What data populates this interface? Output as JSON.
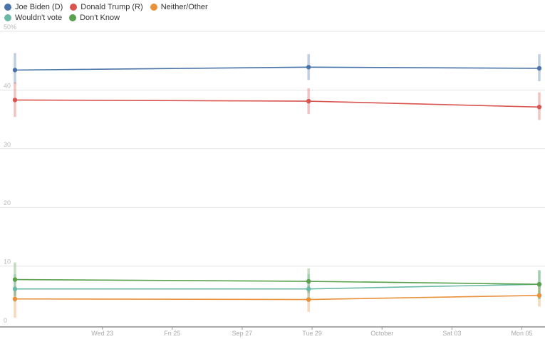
{
  "chart_data": {
    "type": "line",
    "y_unit": "%",
    "ylim": [
      0,
      50
    ],
    "y_ticks": [
      {
        "value": 0,
        "label": "0"
      },
      {
        "value": 10,
        "label": "10"
      },
      {
        "value": 20,
        "label": "20"
      },
      {
        "value": 30,
        "label": "30"
      },
      {
        "value": 40,
        "label": "40"
      },
      {
        "value": 50,
        "label": "50%"
      }
    ],
    "x_ticks": [
      {
        "x": 2.5,
        "label": "Wed 23"
      },
      {
        "x": 4.5,
        "label": "Fri 25"
      },
      {
        "x": 6.5,
        "label": "Sep 27"
      },
      {
        "x": 8.5,
        "label": "Tue 29"
      },
      {
        "x": 10.5,
        "label": "October"
      },
      {
        "x": 12.5,
        "label": "Sat 03"
      },
      {
        "x": 14.5,
        "label": "Mon 05"
      }
    ],
    "xlim": [
      0,
      15
    ],
    "x": [
      0,
      8.4,
      15
    ],
    "series": [
      {
        "name": "Joe Biden (D)",
        "color": "#4a74a8",
        "values": [
          43.4,
          43.9,
          43.7
        ],
        "error": [
          [
            41.1,
            46.3
          ],
          [
            41.7,
            46.1
          ],
          [
            41.5,
            46.1
          ]
        ]
      },
      {
        "name": "Donald Trump (R)",
        "color": "#d9534f",
        "values": [
          38.3,
          38.1,
          37.1
        ],
        "error": [
          [
            35.4,
            41.3
          ],
          [
            35.9,
            40.3
          ],
          [
            34.9,
            39.6
          ]
        ]
      },
      {
        "name": "Neither/Other",
        "color": "#e8913a",
        "values": [
          4.4,
          4.3,
          5.0
        ],
        "error": [
          [
            1.2,
            6.6
          ],
          [
            2.2,
            6.6
          ],
          [
            3.1,
            7.1
          ]
        ]
      },
      {
        "name": "Wouldn't vote",
        "color": "#6ab8a8",
        "values": [
          6.1,
          6.1,
          6.9
        ],
        "error": [
          [
            3.9,
            8.6
          ],
          [
            3.9,
            8.6
          ],
          [
            4.4,
            9.3
          ]
        ]
      },
      {
        "name": "Don't Know",
        "color": "#5aa04e",
        "values": [
          7.7,
          7.4,
          6.9
        ],
        "error": [
          [
            4.9,
            10.6
          ],
          [
            5.4,
            9.6
          ],
          [
            4.4,
            9.3
          ]
        ]
      }
    ]
  }
}
